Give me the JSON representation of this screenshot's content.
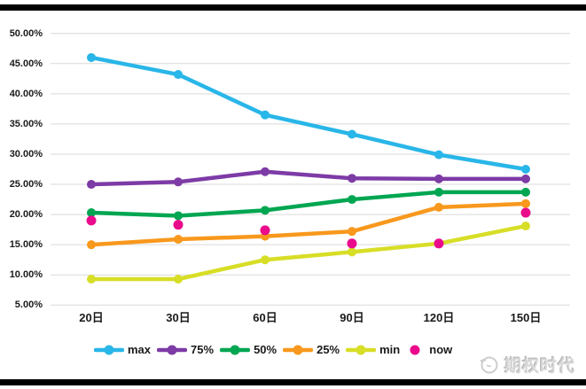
{
  "watermark": {
    "text": "期权时代"
  },
  "chart_data": {
    "type": "line",
    "title": "",
    "xlabel": "",
    "ylabel": "",
    "categories": [
      "20日",
      "30日",
      "60日",
      "90日",
      "120日",
      "150日"
    ],
    "series": [
      {
        "name": "max",
        "color": "#29b6e8",
        "line": true,
        "marker": "circle",
        "values": [
          46.0,
          43.2,
          36.5,
          33.3,
          29.9,
          27.5
        ]
      },
      {
        "name": "75%",
        "color": "#7d3ba6",
        "line": true,
        "marker": "circle",
        "values": [
          25.0,
          25.4,
          27.1,
          26.0,
          25.9,
          25.9
        ]
      },
      {
        "name": "50%",
        "color": "#00a651",
        "line": true,
        "marker": "circle",
        "values": [
          20.3,
          19.8,
          20.7,
          22.5,
          23.7,
          23.7
        ]
      },
      {
        "name": "25%",
        "color": "#f8981d",
        "line": true,
        "marker": "circle",
        "values": [
          15.0,
          15.9,
          16.4,
          17.2,
          21.2,
          21.8
        ]
      },
      {
        "name": "min",
        "color": "#d7de26",
        "line": true,
        "marker": "circle",
        "values": [
          9.3,
          9.3,
          12.5,
          13.8,
          15.2,
          18.1
        ]
      },
      {
        "name": "now",
        "color": "#ea0b8c",
        "line": false,
        "marker": "circle",
        "values": [
          19.0,
          18.3,
          17.4,
          15.2,
          15.2,
          20.3
        ]
      }
    ],
    "ylim": [
      5,
      50
    ],
    "ytick_step": 5,
    "yticks": [
      {
        "v": 50,
        "label": "50.00%"
      },
      {
        "v": 45,
        "label": "45.00%"
      },
      {
        "v": 40,
        "label": "40.00%"
      },
      {
        "v": 35,
        "label": "35.00%"
      },
      {
        "v": 30,
        "label": "30.00%"
      },
      {
        "v": 25,
        "label": "25.00%"
      },
      {
        "v": 20,
        "label": "20.00%"
      },
      {
        "v": 15,
        "label": "15.00%"
      },
      {
        "v": 10,
        "label": "10.00%"
      },
      {
        "v": 5,
        "label": "5.00%"
      }
    ],
    "grid": true,
    "grid_color": "#d9d9d9",
    "label_color": "#1a1a1a",
    "legend_position": "bottom"
  }
}
